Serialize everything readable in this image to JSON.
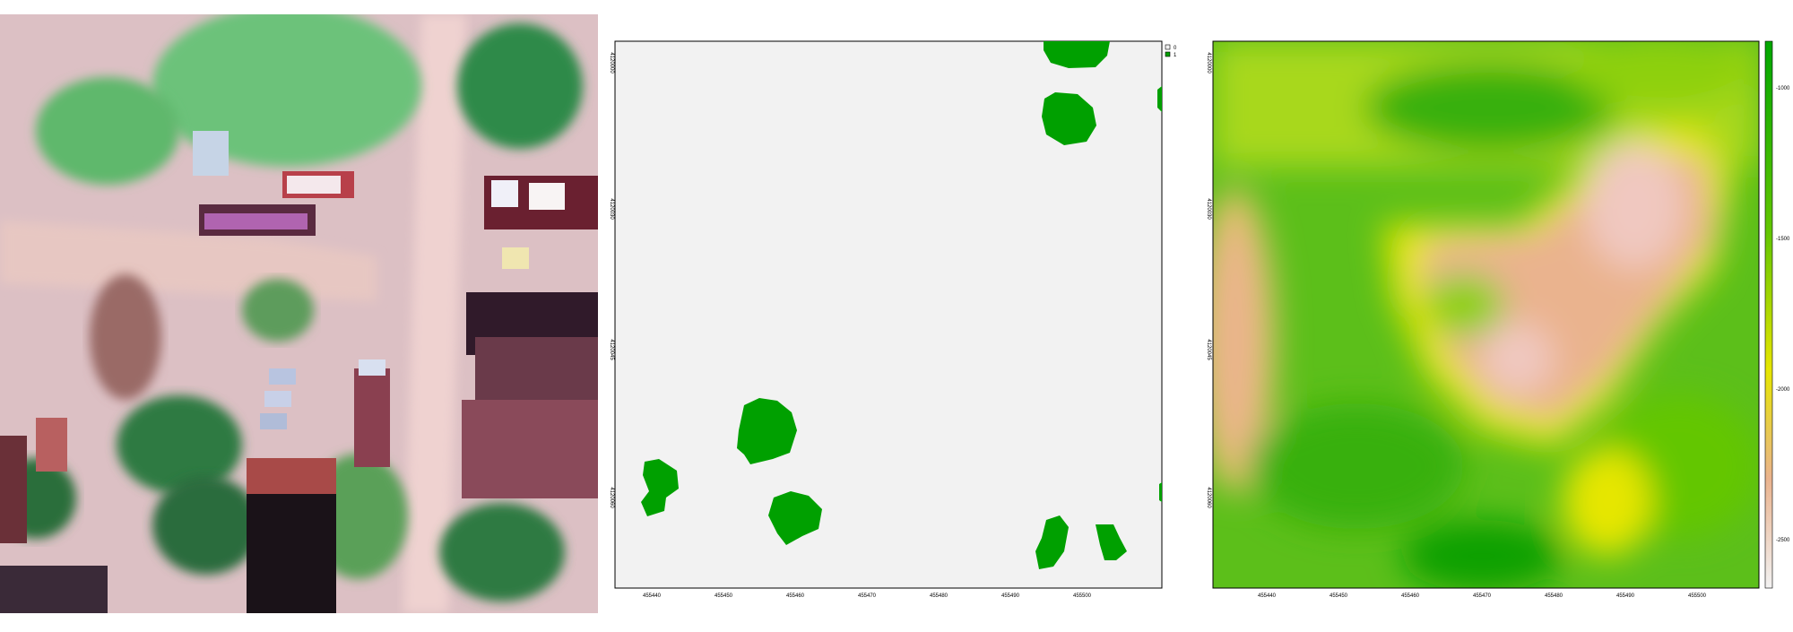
{
  "panels": [
    {
      "name": "aerial-photo",
      "type": "raster-image"
    },
    {
      "name": "classification-map",
      "type": "raster"
    },
    {
      "name": "elevation-map",
      "type": "raster"
    }
  ],
  "classification": {
    "legend": [
      {
        "label": "0",
        "color": "#f2f2f2"
      },
      {
        "label": "1",
        "color": "#00a000"
      }
    ],
    "x_ticks": [
      "455440",
      "455450",
      "455460",
      "455470",
      "455480",
      "455490",
      "455500"
    ],
    "y_ticks": [
      "4120000",
      "4120030",
      "4120045",
      "4120060"
    ]
  },
  "elevation": {
    "x_ticks": [
      "455440",
      "455450",
      "455460",
      "455470",
      "455480",
      "455490",
      "455500"
    ],
    "y_ticks": [
      "4120000",
      "4120030",
      "4120045",
      "4120060"
    ],
    "colorbar_ticks": [
      "-1000",
      "-1500",
      "-2000",
      "-2500"
    ],
    "colors": {
      "high": "#00a600",
      "mid": "#e6e600",
      "low": "#eab38e",
      "lowest": "#f2f2f2"
    }
  }
}
